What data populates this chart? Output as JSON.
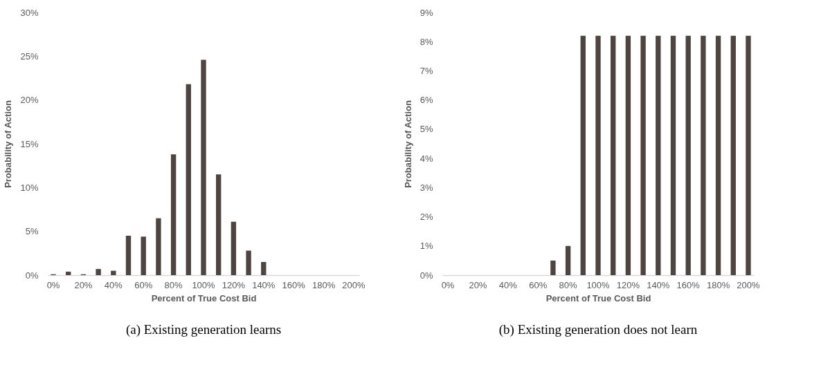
{
  "chart_data": [
    {
      "type": "bar",
      "title": "(a) Existing generation learns",
      "xlabel": "Percent of True Cost Bid",
      "ylabel": "Probability of Action",
      "categories": [
        "0%",
        null,
        "20%",
        null,
        "40%",
        null,
        "60%",
        null,
        "80%",
        null,
        "100%",
        null,
        "120%",
        null,
        "140%",
        null,
        "160%",
        null,
        "180%",
        null,
        "200%"
      ],
      "values": [
        0.1,
        0.4,
        0.1,
        0.7,
        0.5,
        4.5,
        4.4,
        6.5,
        13.8,
        21.8,
        24.6,
        11.5,
        6.1,
        2.8,
        1.5,
        0,
        0,
        0,
        0,
        0,
        0
      ],
      "color": "#4e4540",
      "ylim": [
        0,
        30
      ],
      "yticks": [
        {
          "value": 0,
          "label": "0%"
        },
        {
          "value": 5,
          "label": "5%"
        },
        {
          "value": 10,
          "label": "10%"
        },
        {
          "value": 15,
          "label": "15%"
        },
        {
          "value": 20,
          "label": "20%"
        },
        {
          "value": 25,
          "label": "25%"
        },
        {
          "value": 30,
          "label": "30%"
        }
      ],
      "grid": false
    },
    {
      "type": "bar",
      "title": "(b) Existing generation does not learn",
      "xlabel": "Percent of True Cost Bid",
      "ylabel": "Probability of Action",
      "categories": [
        "0%",
        null,
        "20%",
        null,
        "40%",
        null,
        "60%",
        null,
        "80%",
        null,
        "100%",
        null,
        "120%",
        null,
        "140%",
        null,
        "160%",
        null,
        "180%",
        null,
        "200%"
      ],
      "values": [
        0,
        0,
        0,
        0,
        0,
        0,
        0,
        0.5,
        1.0,
        8.2,
        8.2,
        8.2,
        8.2,
        8.2,
        8.2,
        8.2,
        8.2,
        8.2,
        8.2,
        8.2,
        8.2
      ],
      "color": "#4e4540",
      "ylim": [
        0,
        9
      ],
      "yticks": [
        {
          "value": 0,
          "label": "0%"
        },
        {
          "value": 1,
          "label": "1%"
        },
        {
          "value": 2,
          "label": "2%"
        },
        {
          "value": 3,
          "label": "3%"
        },
        {
          "value": 4,
          "label": "4%"
        },
        {
          "value": 5,
          "label": "5%"
        },
        {
          "value": 6,
          "label": "6%"
        },
        {
          "value": 7,
          "label": "7%"
        },
        {
          "value": 8,
          "label": "8%"
        },
        {
          "value": 9,
          "label": "9%"
        }
      ],
      "grid": false
    }
  ]
}
